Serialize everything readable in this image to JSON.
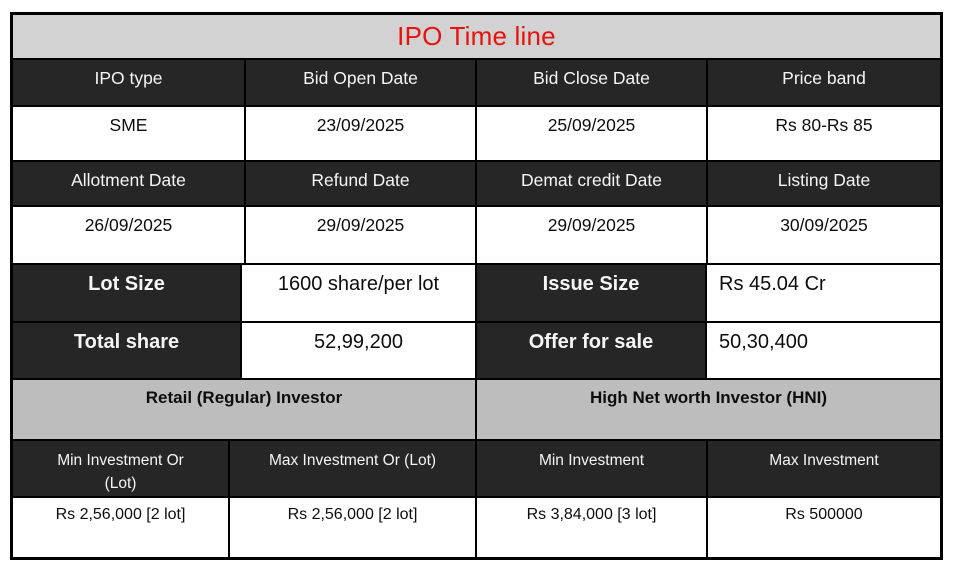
{
  "title": {
    "text": "IPO Time line",
    "color": "#e8120c"
  },
  "colors": {
    "title_band_bg": "#d2d2d2",
    "header_bg": "#262626",
    "header_text": "#f5f5f5",
    "section_band_bg": "#bdbdbd",
    "body_bg": "#ffffff",
    "border": "#000000"
  },
  "timeline": {
    "headers_row1": [
      "IPO type",
      "Bid Open Date",
      "Bid Close Date",
      "Price band"
    ],
    "values_row1": [
      "SME",
      "23/09/2025",
      "25/09/2025",
      "Rs 80-Rs 85"
    ],
    "headers_row2": [
      "Allotment Date",
      "Refund Date",
      "Demat credit Date",
      "Listing Date"
    ],
    "values_row2": [
      "26/09/2025",
      "29/09/2025",
      "29/09/2025",
      "30/09/2025"
    ]
  },
  "summary": {
    "row1": {
      "label_left": "Lot Size",
      "value_left": "1600 share/per lot",
      "label_right": "Issue Size",
      "value_right": "Rs 45.04 Cr"
    },
    "row2": {
      "label_left": "Total share",
      "value_left": "52,99,200",
      "label_right": "Offer for sale",
      "value_right": "50,30,400"
    }
  },
  "investors": {
    "retail_title": "Retail (Regular) Investor",
    "hni_title": "High Net worth Investor (HNI)",
    "headers": [
      "Min Investment Or\n(Lot)",
      "Max Investment Or (Lot)",
      "Min Investment",
      "Max Investment"
    ],
    "values": [
      "Rs 2,56,000 [2 lot]",
      "Rs 2,56,000 [2 lot]",
      "Rs 3,84,000 [3 lot]",
      "Rs 500000"
    ]
  }
}
